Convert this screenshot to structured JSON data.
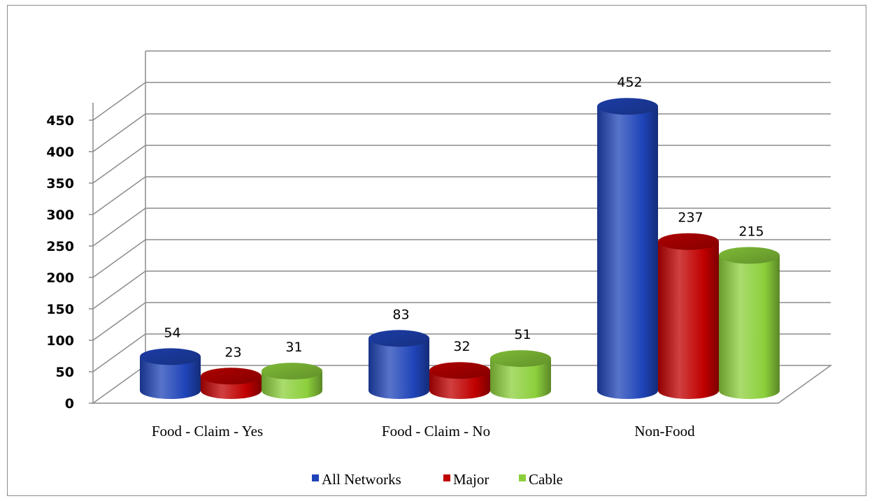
{
  "chart_data": {
    "type": "bar",
    "style": "3d-cylinder",
    "categories": [
      "Food - Claim - Yes",
      "Food - Claim - No",
      "Non-Food"
    ],
    "series": [
      {
        "name": "All Networks",
        "color": "#1f44b8",
        "values": [
          54,
          83,
          452
        ]
      },
      {
        "name": "Major",
        "color": "#c00000",
        "values": [
          23,
          32,
          237
        ]
      },
      {
        "name": "Cable",
        "color": "#8ccf3c",
        "values": [
          31,
          51,
          215
        ]
      }
    ],
    "yticks": [
      "0",
      "50",
      "100",
      "150",
      "200",
      "250",
      "300",
      "350",
      "400",
      "450"
    ],
    "ylim": [
      0,
      500
    ],
    "grid": true,
    "legend": "bottom",
    "title": "",
    "xlabel": "",
    "ylabel": ""
  }
}
